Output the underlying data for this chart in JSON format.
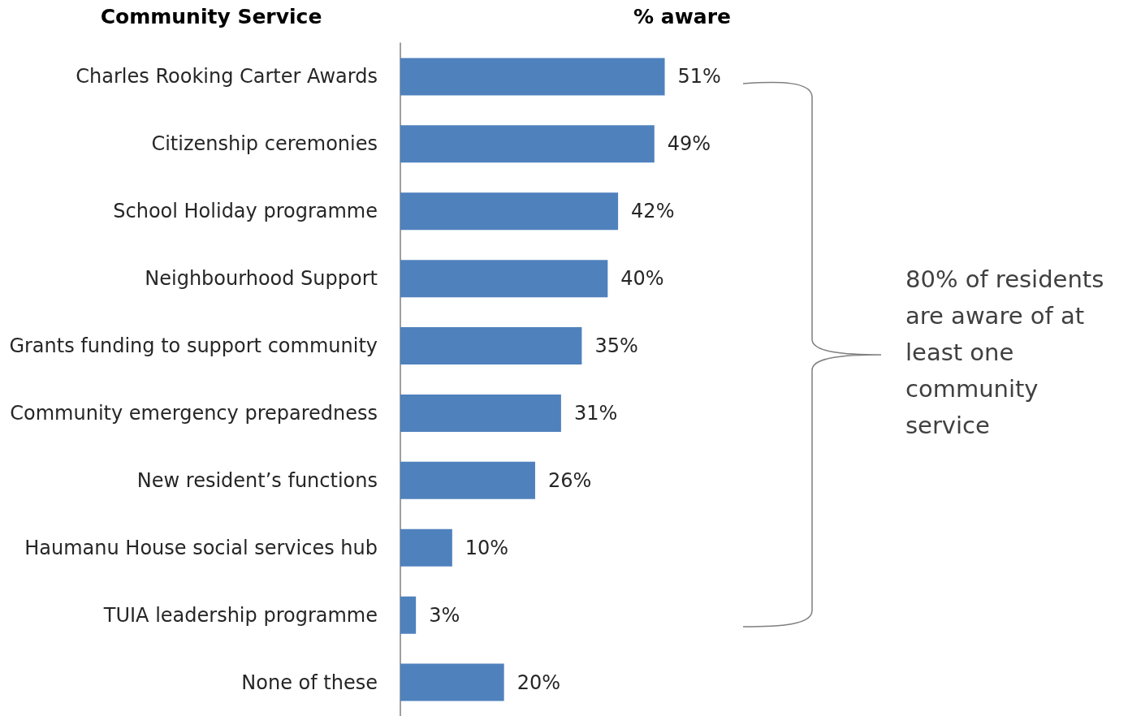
{
  "chart_data": {
    "type": "bar",
    "orientation": "horizontal",
    "ylabel": "Community Service",
    "xlabel": "% aware",
    "categories": [
      "Charles Rooking Carter Awards",
      "Citizenship ceremonies",
      "School Holiday programme",
      "Neighbourhood Support",
      "Grants funding to support community",
      "Community emergency preparedness",
      "New resident’s functions",
      "Haumanu House social services hub",
      "TUIA leadership programme",
      "None of these"
    ],
    "values": [
      51,
      49,
      42,
      40,
      35,
      31,
      26,
      10,
      3,
      20
    ],
    "value_labels": [
      "51%",
      "49%",
      "42%",
      "40%",
      "35%",
      "31%",
      "26%",
      "10%",
      "3%",
      "20%"
    ],
    "color": "#4f81bd",
    "tick_labels": "y",
    "annotations": [
      "80% of residents are aware of at least one community service"
    ]
  }
}
